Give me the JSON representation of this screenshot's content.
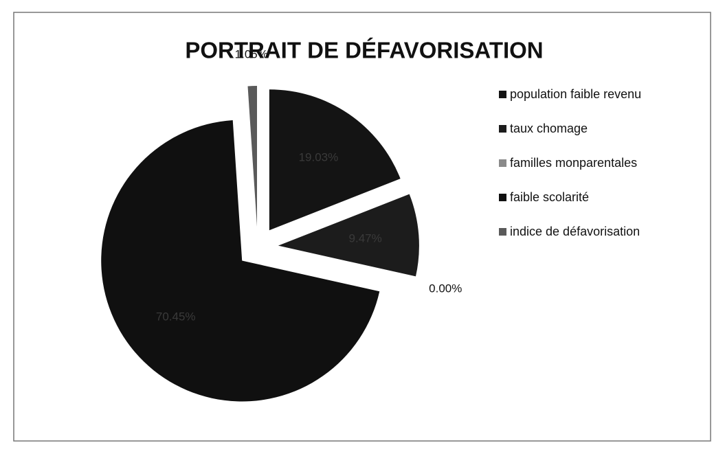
{
  "chart_data": {
    "type": "pie",
    "title": "PORTRAIT DE DÉFAVORISATION",
    "categories": [
      "population faible revenu",
      "taux chomage",
      "familles monparentales",
      "faible scolarité",
      "indice de défavorisation"
    ],
    "values": [
      19.03,
      9.47,
      0.0,
      70.45,
      1.05
    ],
    "value_labels": [
      "19.03%",
      "9.47%",
      "0.00%",
      "70.45%",
      "1.05%"
    ],
    "colors": [
      "#141414",
      "#1c1c1c",
      "#8a8a8a",
      "#101010",
      "#5a5a5a"
    ],
    "legend": "right"
  }
}
